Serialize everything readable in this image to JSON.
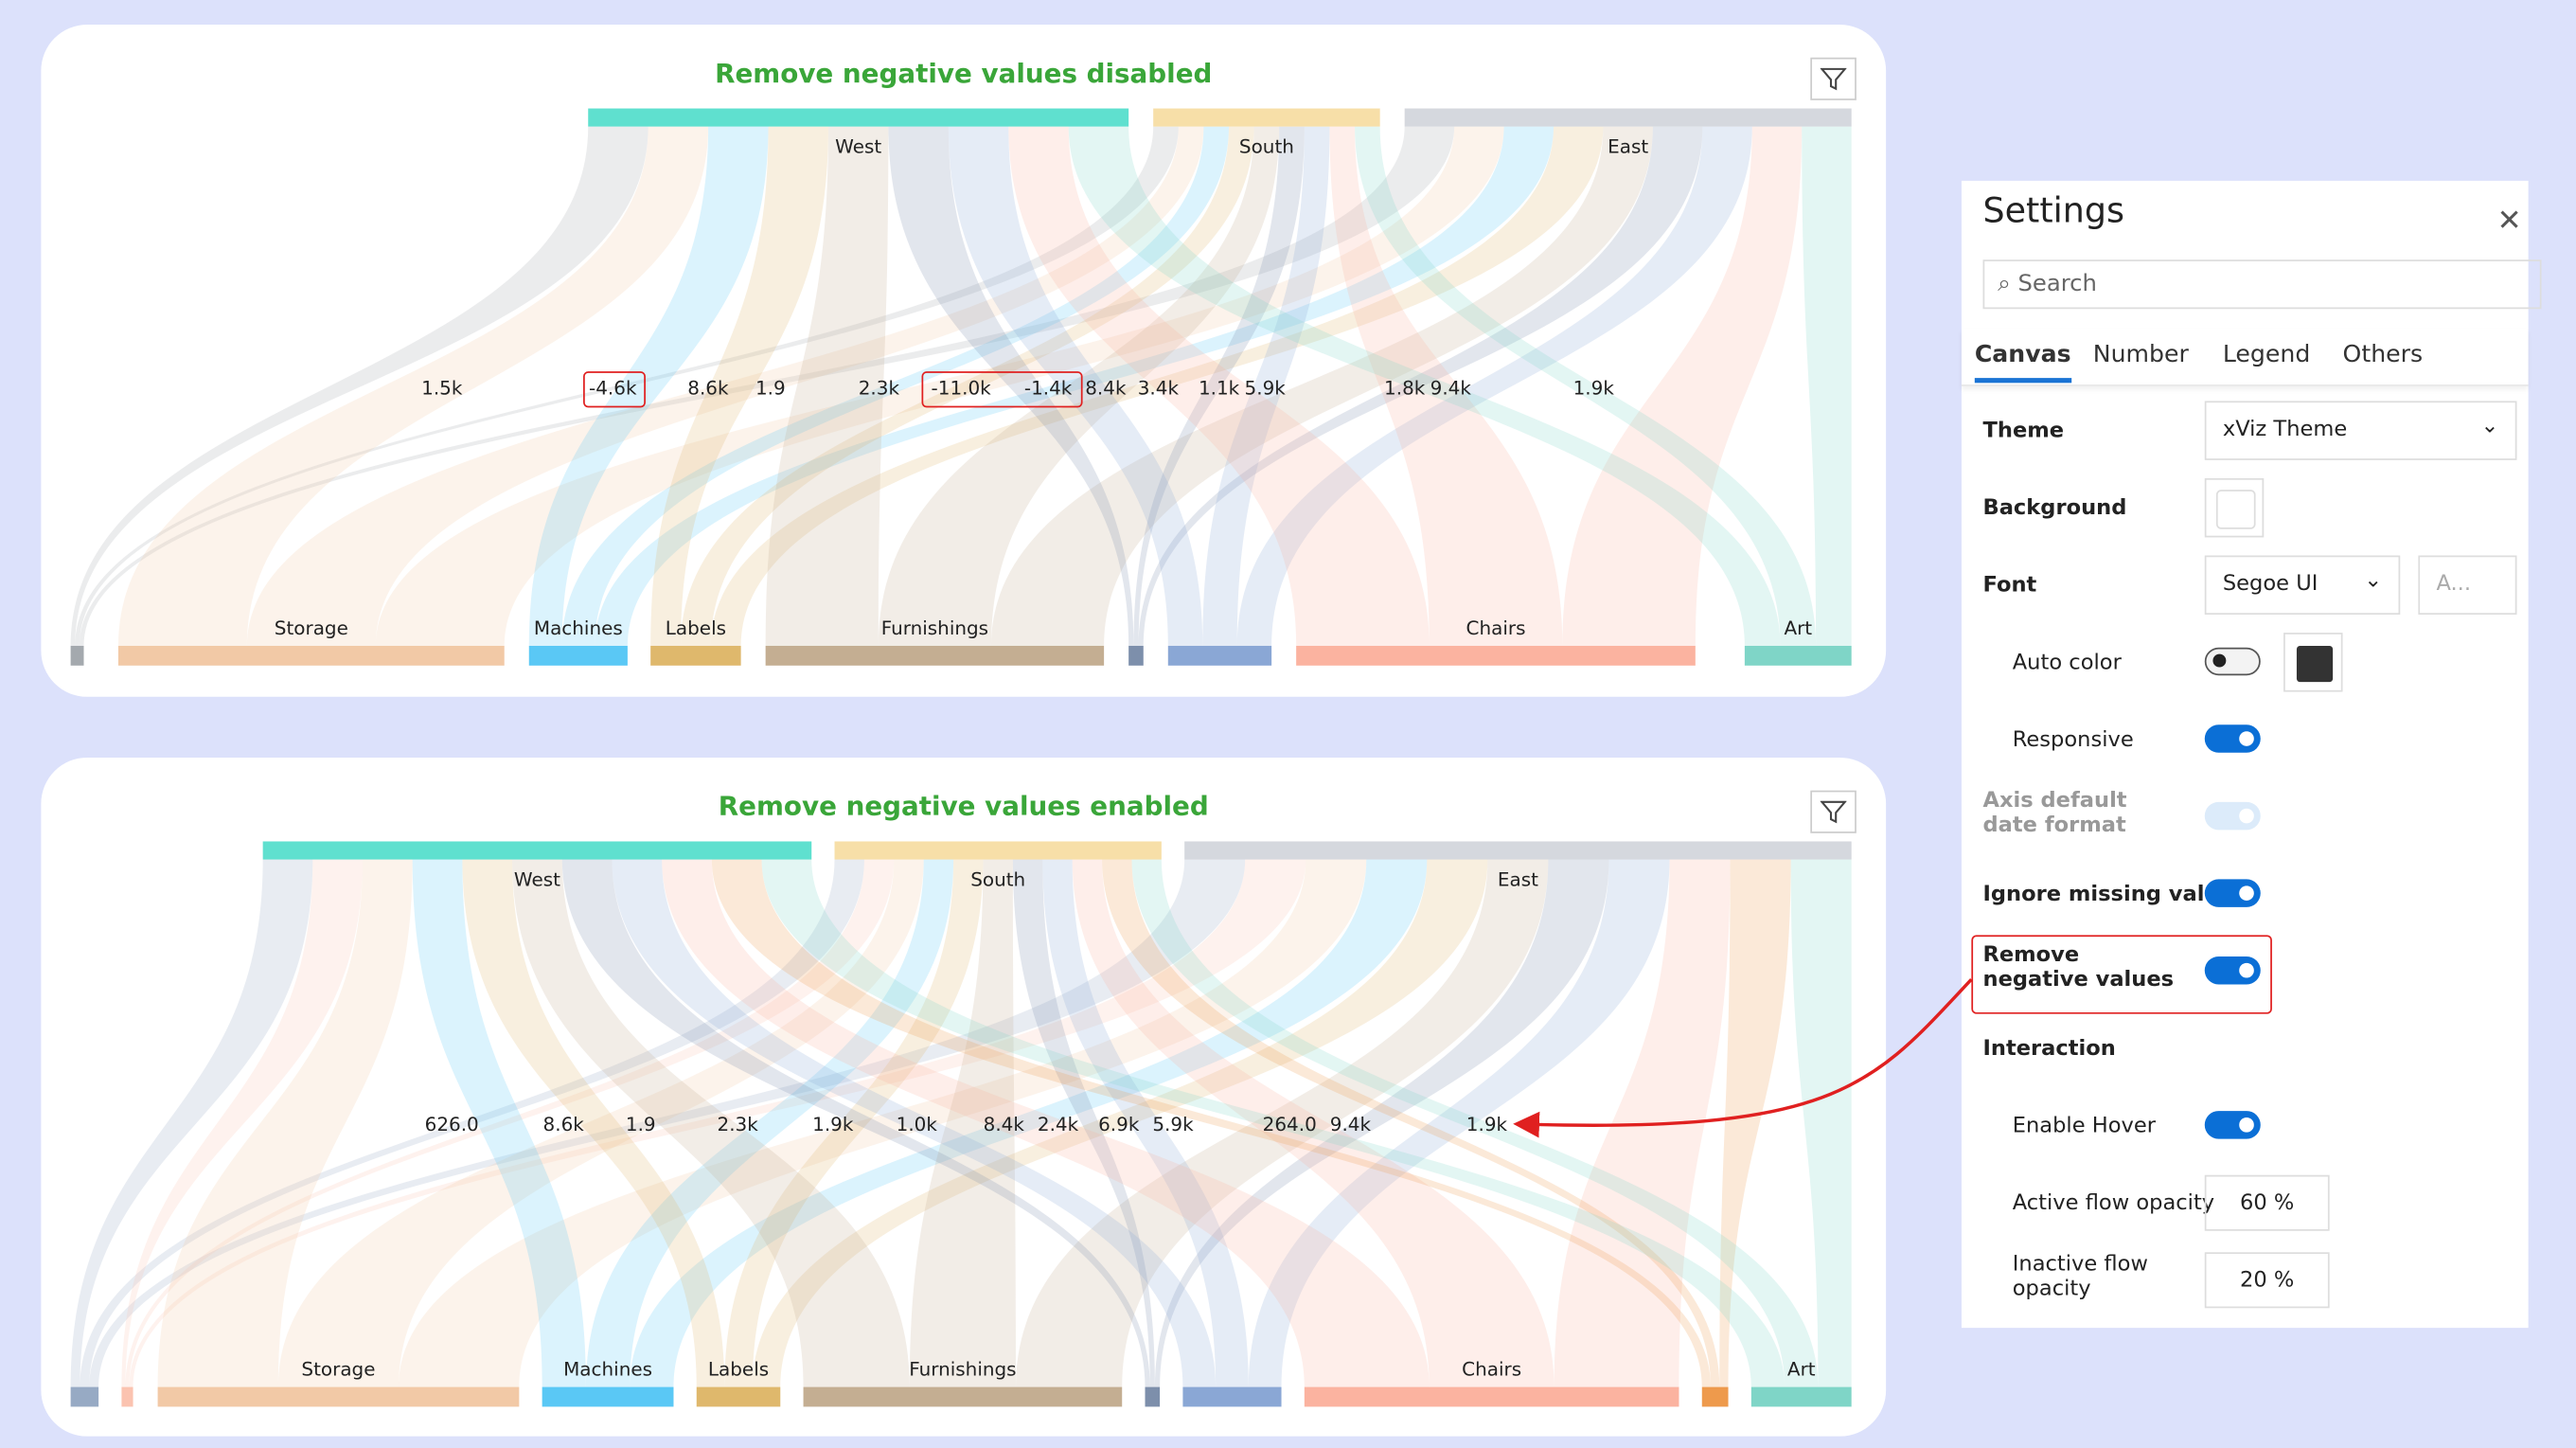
{
  "colors": {
    "title": "#3aa639",
    "highlight": "#e02020",
    "accent": "#0b6fd6",
    "background": "#dce1fb"
  },
  "chart_data": [
    {
      "type": "sankey",
      "title": "Remove negative values disabled",
      "sources": [
        {
          "name": "West",
          "color": "#5fe0cf"
        },
        {
          "name": "South",
          "color": "#f7dfa8"
        },
        {
          "name": "East",
          "color": "#d5d8de"
        }
      ],
      "targets": [
        {
          "name": "",
          "color": "#a4a9ae"
        },
        {
          "name": "Storage",
          "color": "#f2c9a6"
        },
        {
          "name": "Machines",
          "color": "#5ac8f5"
        },
        {
          "name": "Labels",
          "color": "#dfb86c"
        },
        {
          "name": "Furnishings",
          "color": "#c4ae92"
        },
        {
          "name": "",
          "color": "#7d8fab"
        },
        {
          "name": "",
          "color": "#8aa7d5"
        },
        {
          "name": "Chairs",
          "color": "#fbb3a0"
        },
        {
          "name": "Art",
          "color": "#7fd5c7"
        }
      ],
      "flow_labels": [
        "1.5k",
        "-4.6k",
        "8.6k",
        "1.9",
        "2.3k",
        "-11.0k",
        "-1.4k",
        "8.4k",
        "3.4k",
        "1.1k",
        "5.9k",
        "1.8k",
        "9.4k",
        "1.9k"
      ],
      "highlighted_labels": [
        "-4.6k",
        "-11.0k",
        "-1.4k"
      ]
    },
    {
      "type": "sankey",
      "title": "Remove negative values enabled",
      "sources": [
        {
          "name": "West",
          "color": "#5fe0cf"
        },
        {
          "name": "South",
          "color": "#f7dfa8"
        },
        {
          "name": "East",
          "color": "#d5d8de"
        }
      ],
      "targets": [
        {
          "name": "",
          "color": "#97aac4"
        },
        {
          "name": "",
          "color": "#fbc3b0"
        },
        {
          "name": "Storage",
          "color": "#f2c9a6"
        },
        {
          "name": "Machines",
          "color": "#5ac8f5"
        },
        {
          "name": "Labels",
          "color": "#dfb86c"
        },
        {
          "name": "Furnishings",
          "color": "#c4ae92"
        },
        {
          "name": "",
          "color": "#7d8fab"
        },
        {
          "name": "",
          "color": "#8aa7d5"
        },
        {
          "name": "Chairs",
          "color": "#fbb3a0"
        },
        {
          "name": "",
          "color": "#ee9a4c"
        },
        {
          "name": "Art",
          "color": "#7fd5c7"
        }
      ],
      "flow_labels": [
        "626.0",
        "8.6k",
        "1.9",
        "2.3k",
        "1.9k",
        "1.0k",
        "8.4k",
        "2.4k",
        "6.9k",
        "5.9k",
        "264.0",
        "9.4k",
        "1.9k"
      ]
    }
  ],
  "settings": {
    "title": "Settings",
    "search_placeholder": "Search",
    "tabs": [
      "Canvas",
      "Number",
      "Legend",
      "Others"
    ],
    "active_tab": "Canvas",
    "theme": {
      "label": "Theme",
      "value": "xViz Theme"
    },
    "background": {
      "label": "Background",
      "value": "#ffffff"
    },
    "font": {
      "label": "Font",
      "value": "Segoe UI",
      "size_placeholder": "A..."
    },
    "auto_color": {
      "label": "Auto color",
      "on": false,
      "color": "#333333"
    },
    "responsive": {
      "label": "Responsive",
      "on": true
    },
    "axis_date": {
      "label": "Axis default date format",
      "on": true,
      "disabled": true
    },
    "ignore_missing": {
      "label": "Ignore missing value",
      "on": true
    },
    "remove_negative": {
      "label": "Remove negative values",
      "on": true
    },
    "interaction": {
      "label": "Interaction"
    },
    "enable_hover": {
      "label": "Enable Hover",
      "on": true
    },
    "active_opacity": {
      "label": "Active flow opacity",
      "value": "60 %"
    },
    "inactive_opacity": {
      "label": "Inactive flow opacity",
      "value": "20 %"
    }
  }
}
